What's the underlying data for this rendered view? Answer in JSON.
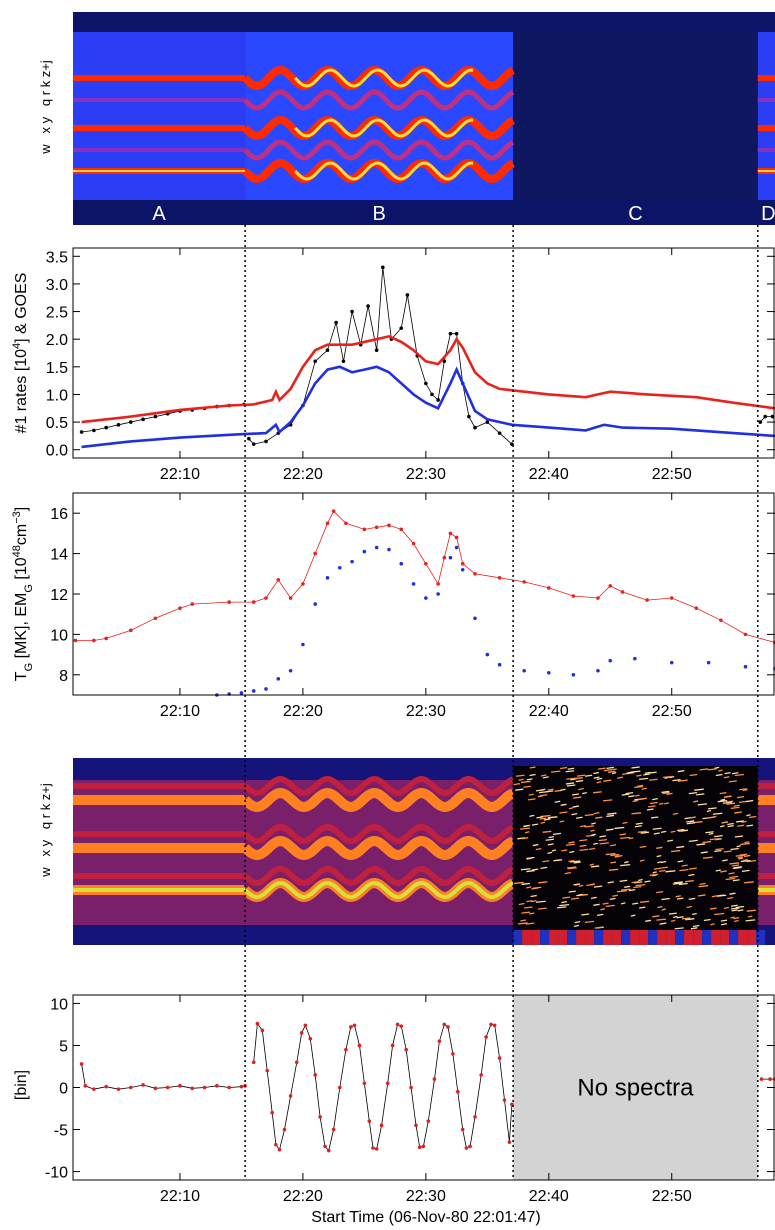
{
  "chart_data": [
    {
      "type": "spectrogram",
      "row_labels": "w   x y   q r k z+j",
      "segment_labels": [
        "A",
        "B",
        "C",
        "D"
      ]
    },
    {
      "type": "line",
      "ylabel": [
        "#1 rates [10",
        "4",
        "] & GOES"
      ],
      "xlim": [
        1.3,
        58.4
      ],
      "ylim": [
        -0.15,
        3.65
      ],
      "xticks": [
        {
          "value": 10,
          "label": "22:10"
        },
        {
          "value": 20,
          "label": "22:20"
        },
        {
          "value": 30,
          "label": "22:30"
        },
        {
          "value": 40,
          "label": "22:40"
        },
        {
          "value": 50,
          "label": "22:50"
        }
      ],
      "yticks": [
        {
          "value": 0,
          "label": "0.0"
        },
        0.5,
        {
          "value": 1,
          "label": "1.0"
        },
        1.5,
        {
          "value": 2,
          "label": "2.0"
        },
        2.5,
        {
          "value": 3,
          "label": "3.0"
        },
        3.5
      ],
      "series": [
        {
          "color": "#000000",
          "marker": true,
          "x": [
            2,
            3,
            4,
            5,
            6,
            7,
            8,
            9,
            10,
            11,
            12,
            13,
            14,
            15.2,
            15.4,
            15.6,
            16,
            17,
            18,
            19,
            20,
            21,
            22,
            22.7,
            23.3,
            24,
            24.7,
            25.3,
            26,
            26.5,
            27.2,
            28,
            28.5,
            29.3,
            30,
            30.5,
            31,
            31.5,
            32,
            32.5,
            33,
            33.5,
            34,
            35,
            36,
            37,
            47,
            57.2,
            57.6,
            58.2
          ],
          "values": [
            0.32,
            0.35,
            0.4,
            0.45,
            0.5,
            0.55,
            0.6,
            0.65,
            0.7,
            0.72,
            0.75,
            0.78,
            0.8,
            0.82,
            null,
            0.2,
            0.1,
            0.15,
            0.3,
            0.45,
            0.8,
            1.6,
            1.8,
            2.3,
            1.6,
            2.5,
            1.9,
            2.6,
            1.8,
            3.3,
            2.0,
            2.2,
            2.8,
            1.7,
            1.2,
            1.0,
            0.9,
            1.6,
            2.1,
            2.1,
            1.2,
            0.6,
            0.4,
            0.5,
            0.3,
            0.1,
            null,
            0.5,
            0.6,
            0.6
          ]
        },
        {
          "color": "#e8221c",
          "x": [
            2,
            6,
            10,
            14,
            16,
            17.5,
            17.8,
            18.1,
            19,
            20,
            21,
            22,
            24,
            26,
            27,
            28,
            29,
            30,
            31,
            32,
            32.5,
            33,
            34,
            35,
            36,
            38,
            40,
            43,
            44,
            45,
            48,
            52,
            55,
            58.4
          ],
          "values": [
            0.5,
            0.6,
            0.72,
            0.8,
            0.82,
            0.9,
            1.05,
            0.9,
            1.1,
            1.5,
            1.8,
            1.9,
            1.9,
            2.0,
            2.05,
            1.95,
            1.8,
            1.6,
            1.55,
            1.8,
            2.0,
            1.85,
            1.4,
            1.2,
            1.1,
            1.05,
            1.0,
            0.95,
            1.0,
            1.05,
            1.0,
            0.95,
            0.85,
            0.75
          ]
        },
        {
          "color": "#2030e0",
          "x": [
            2,
            6,
            10,
            15,
            17,
            17.8,
            18.1,
            19,
            20,
            21,
            22,
            23,
            24,
            25,
            26,
            27,
            28,
            29,
            30,
            31,
            32,
            32.5,
            33,
            34,
            35,
            37,
            40,
            43,
            44.5,
            46,
            50,
            55,
            58.4
          ],
          "values": [
            0.05,
            0.15,
            0.22,
            0.28,
            0.3,
            0.45,
            0.32,
            0.5,
            0.8,
            1.2,
            1.45,
            1.5,
            1.4,
            1.45,
            1.5,
            1.4,
            1.2,
            1.0,
            0.85,
            0.75,
            1.2,
            1.45,
            1.2,
            0.7,
            0.55,
            0.45,
            0.4,
            0.35,
            0.45,
            0.4,
            0.38,
            0.3,
            0.25
          ]
        }
      ]
    },
    {
      "type": "line",
      "ylabel": [
        "T",
        "G",
        " [MK], EM",
        "G",
        " [10",
        "48",
        "cm",
        "−3",
        "]"
      ],
      "xlim": [
        1.3,
        58.4
      ],
      "ylim": [
        7,
        17
      ],
      "xticks": [
        {
          "value": 10,
          "label": "22:10"
        },
        {
          "value": 20,
          "label": "22:20"
        },
        {
          "value": 30,
          "label": "22:30"
        },
        {
          "value": 40,
          "label": "22:40"
        },
        {
          "value": 50,
          "label": "22:50"
        }
      ],
      "yticks": [
        8,
        10,
        12,
        14,
        16
      ],
      "series": [
        {
          "color": "#e8221c",
          "marker": true,
          "x": [
            1.5,
            3,
            4,
            6,
            8,
            10,
            11,
            14,
            16,
            17,
            18,
            19,
            20,
            21,
            22,
            22.5,
            23.5,
            25,
            26,
            27,
            28,
            29,
            30,
            31,
            31.5,
            32,
            32.5,
            33,
            34,
            36,
            38,
            40,
            42,
            44,
            45,
            46,
            48,
            50,
            52,
            54,
            56,
            58.4
          ],
          "values": [
            9.7,
            9.7,
            9.8,
            10.2,
            10.8,
            11.3,
            11.5,
            11.6,
            11.6,
            11.8,
            12.7,
            11.8,
            12.5,
            14.0,
            15.5,
            16.1,
            15.5,
            15.2,
            15.3,
            15.4,
            15.2,
            14.5,
            13.5,
            12.5,
            13.8,
            15.0,
            14.8,
            13.5,
            13.0,
            12.8,
            12.6,
            12.3,
            11.9,
            11.8,
            12.4,
            12.1,
            11.7,
            11.8,
            11.3,
            10.7,
            10.0,
            9.6
          ]
        },
        {
          "color": "#2030e0",
          "marker": true,
          "line": false,
          "x": [
            13,
            14,
            15,
            16,
            17,
            18,
            19,
            20,
            21,
            22,
            23,
            24,
            25,
            26,
            27,
            28,
            29,
            30,
            31,
            32,
            32.5,
            33,
            34,
            35,
            36,
            38,
            40,
            42,
            44,
            45,
            47,
            50,
            53,
            56,
            58.4
          ],
          "values": [
            7.0,
            7.05,
            7.1,
            7.2,
            7.3,
            7.8,
            8.2,
            9.5,
            11.5,
            12.8,
            13.3,
            13.6,
            14.1,
            14.3,
            14.2,
            13.5,
            12.5,
            11.8,
            12.0,
            13.8,
            14.3,
            13.2,
            10.8,
            9.0,
            8.5,
            8.2,
            8.1,
            8.0,
            8.2,
            8.7,
            8.8,
            8.6,
            8.6,
            8.4,
            8.3
          ]
        }
      ]
    },
    {
      "type": "spectrogram",
      "row_labels": "w   x y   q r k z+j"
    },
    {
      "type": "line",
      "ylabel": [
        "[bin]"
      ],
      "xlabel": "Start Time (06-Nov-80 22:01:47)",
      "annotation": "No spectra",
      "xlim": [
        1.3,
        58.4
      ],
      "ylim": [
        -11,
        11
      ],
      "xticks": [
        {
          "value": 10,
          "label": "22:10"
        },
        {
          "value": 20,
          "label": "22:20"
        },
        {
          "value": 30,
          "label": "22:30"
        },
        {
          "value": 40,
          "label": "22:40"
        },
        {
          "value": 50,
          "label": "22:50"
        }
      ],
      "yticks": [
        -10,
        -5,
        0,
        5,
        10
      ],
      "dividers": [
        15.3,
        37.1,
        57.0
      ],
      "series": [
        {
          "color": "#e02020",
          "line_color": "#000000",
          "marker": true,
          "x": [
            2.0,
            2.3,
            3,
            4,
            5,
            6,
            7,
            8,
            9,
            10,
            11,
            12,
            13,
            14,
            15,
            15.3,
            15.6,
            16.0,
            16.3,
            16.7,
            17.1,
            17.5,
            17.8,
            18.1,
            18.5,
            19.0,
            19.5,
            19.9,
            20.2,
            20.6,
            21.0,
            21.4,
            21.8,
            22.1,
            22.5,
            23.0,
            23.5,
            23.9,
            24.2,
            24.6,
            25.0,
            25.4,
            25.7,
            26.0,
            26.4,
            26.9,
            27.3,
            27.7,
            28.0,
            28.4,
            28.8,
            29.2,
            29.5,
            29.8,
            30.2,
            30.7,
            31.1,
            31.5,
            31.8,
            32.2,
            32.6,
            33.0,
            33.3,
            33.6,
            34.0,
            34.5,
            34.9,
            35.3,
            35.6,
            36.0,
            36.4,
            36.8,
            37.0,
            47,
            57.3,
            58,
            58.4
          ],
          "values": [
            2.8,
            0.2,
            -0.2,
            0.1,
            -0.2,
            0,
            0.3,
            -0.1,
            0,
            0.2,
            -0.1,
            0,
            0.2,
            0,
            0.1,
            0.2,
            null,
            3,
            7.6,
            6.8,
            2,
            -3,
            -6.8,
            -7.4,
            -5,
            -1,
            3,
            6.5,
            7.4,
            5.8,
            1.5,
            -3.5,
            -7.0,
            -7.5,
            -5,
            0,
            4.5,
            7.2,
            7.4,
            5,
            0.5,
            -4,
            -7.2,
            -7.3,
            -4.5,
            0.5,
            5,
            7.5,
            7.3,
            4.5,
            0,
            -4.5,
            -7.1,
            -7.0,
            -4,
            1,
            5.5,
            7.5,
            7.2,
            4,
            -0.5,
            -5,
            -7.2,
            -7.0,
            -3.5,
            1.5,
            6,
            7.5,
            7.4,
            3.5,
            -1.5,
            -6.5,
            -2,
            null,
            1,
            1,
            1
          ]
        }
      ]
    }
  ]
}
